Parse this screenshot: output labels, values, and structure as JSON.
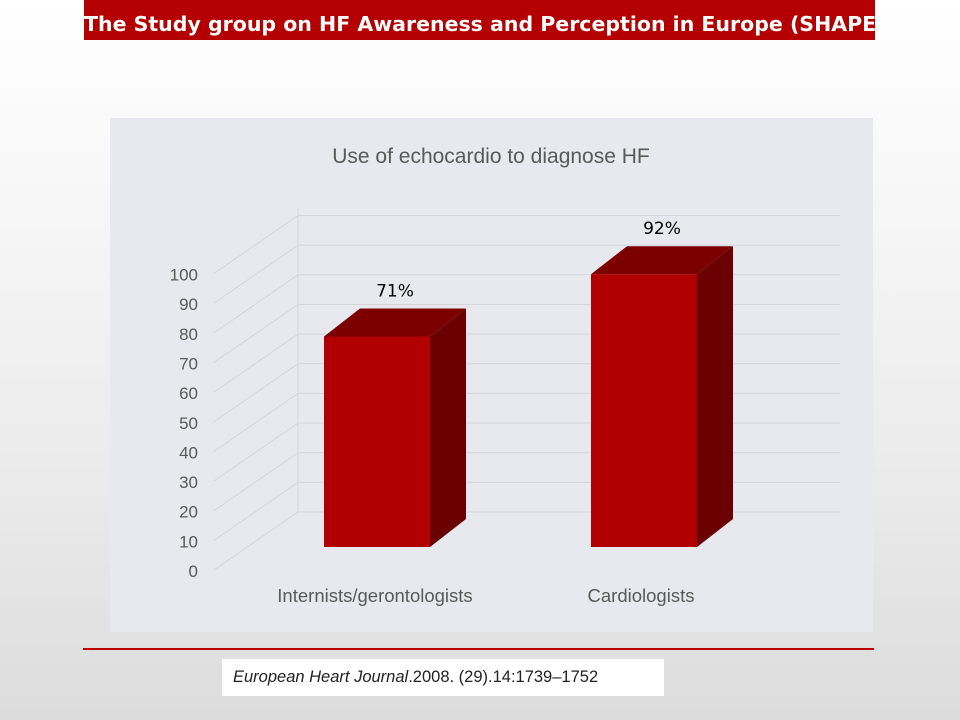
{
  "header": {
    "title": "The Study group on HF Awareness and Perception in Europe (SHAPE)"
  },
  "citation": {
    "journal": "European Heart Journal",
    "details": ".2008. (29).14:1739–1752"
  },
  "colors": {
    "title_bar": "#b40000",
    "bar_front": "#b00000",
    "bar_top": "#7c0000",
    "bar_side": "#6a0000",
    "rule": "#c00000",
    "chart_bg": "#e7e9ee"
  },
  "chart_data": {
    "type": "bar",
    "style": "3d-column",
    "title": "Use of echocardio to diagnose HF",
    "categories": [
      "Internists/gerontologists",
      "Cardiologists"
    ],
    "values": [
      71,
      92
    ],
    "data_labels": [
      "71%",
      "92%"
    ],
    "ylim": [
      0,
      100
    ],
    "yticks": [
      "0",
      "10",
      "20",
      "30",
      "40",
      "50",
      "60",
      "70",
      "80",
      "90",
      "100"
    ],
    "xlabel": "",
    "ylabel": "",
    "grid": true,
    "legend": "none"
  }
}
